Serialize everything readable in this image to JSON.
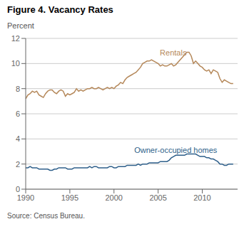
{
  "chart_data": {
    "type": "line",
    "title": "Figure 4. Vacancy Rates",
    "y_label": "Percent",
    "source": "Source: Census Bureau.",
    "x": [
      1990.0,
      1990.25,
      1990.5,
      1990.75,
      1991.0,
      1991.25,
      1991.5,
      1991.75,
      1992.0,
      1992.25,
      1992.5,
      1992.75,
      1993.0,
      1993.25,
      1993.5,
      1993.75,
      1994.0,
      1994.25,
      1994.5,
      1994.75,
      1995.0,
      1995.25,
      1995.5,
      1995.75,
      1996.0,
      1996.25,
      1996.5,
      1996.75,
      1997.0,
      1997.25,
      1997.5,
      1997.75,
      1998.0,
      1998.25,
      1998.5,
      1998.75,
      1999.0,
      1999.25,
      1999.5,
      1999.75,
      2000.0,
      2000.25,
      2000.5,
      2000.75,
      2001.0,
      2001.25,
      2001.5,
      2001.75,
      2002.0,
      2002.25,
      2002.5,
      2002.75,
      2003.0,
      2003.25,
      2003.5,
      2003.75,
      2004.0,
      2004.25,
      2004.5,
      2004.75,
      2005.0,
      2005.25,
      2005.5,
      2005.75,
      2006.0,
      2006.25,
      2006.5,
      2006.75,
      2007.0,
      2007.25,
      2007.5,
      2007.75,
      2008.0,
      2008.25,
      2008.5,
      2008.75,
      2009.0,
      2009.25,
      2009.5,
      2009.75,
      2010.0,
      2010.25,
      2010.5,
      2010.75,
      2011.0,
      2011.25,
      2011.5,
      2011.75,
      2012.0,
      2012.25,
      2012.5,
      2012.75,
      2013.0,
      2013.25,
      2013.5
    ],
    "series": [
      {
        "name": "Rentals",
        "color": "#b5885a",
        "values": [
          7.2,
          7.5,
          7.6,
          7.8,
          7.7,
          7.8,
          7.5,
          7.4,
          7.3,
          7.6,
          7.8,
          7.9,
          7.9,
          7.7,
          7.6,
          7.8,
          7.9,
          7.8,
          7.4,
          7.6,
          7.5,
          7.6,
          7.7,
          8.0,
          7.8,
          7.9,
          7.8,
          7.9,
          8.0,
          8.0,
          8.1,
          8.0,
          8.0,
          8.1,
          8.0,
          7.9,
          8.0,
          8.1,
          8.0,
          8.1,
          8.0,
          8.2,
          8.3,
          8.5,
          8.4,
          8.7,
          8.9,
          9.0,
          9.1,
          9.2,
          9.3,
          9.5,
          9.7,
          10.0,
          10.1,
          10.2,
          10.2,
          10.3,
          10.2,
          10.1,
          10.0,
          9.8,
          9.9,
          9.8,
          9.8,
          9.9,
          10.0,
          9.8,
          9.9,
          10.1,
          10.3,
          10.5,
          10.7,
          10.9,
          10.9,
          10.6,
          10.0,
          10.2,
          10.0,
          9.8,
          9.7,
          9.5,
          9.4,
          9.5,
          9.2,
          9.5,
          9.4,
          9.3,
          8.8,
          8.5,
          8.7,
          8.6,
          8.5,
          8.4,
          8.4
        ]
      },
      {
        "name": "Owner-occupied homes",
        "color": "#2e5f8a",
        "values": [
          1.7,
          1.7,
          1.8,
          1.7,
          1.7,
          1.7,
          1.6,
          1.6,
          1.6,
          1.6,
          1.6,
          1.5,
          1.5,
          1.6,
          1.6,
          1.7,
          1.7,
          1.7,
          1.7,
          1.6,
          1.6,
          1.6,
          1.7,
          1.7,
          1.7,
          1.7,
          1.7,
          1.7,
          1.7,
          1.8,
          1.7,
          1.8,
          1.8,
          1.7,
          1.7,
          1.7,
          1.7,
          1.7,
          1.8,
          1.8,
          1.7,
          1.7,
          1.8,
          1.8,
          1.8,
          1.8,
          1.9,
          1.9,
          1.9,
          1.9,
          1.9,
          2.0,
          1.9,
          2.0,
          2.0,
          2.0,
          2.1,
          2.1,
          2.1,
          2.1,
          2.1,
          2.2,
          2.2,
          2.2,
          2.2,
          2.3,
          2.5,
          2.6,
          2.7,
          2.7,
          2.7,
          2.7,
          2.7,
          2.8,
          2.8,
          2.8,
          2.8,
          2.8,
          2.7,
          2.6,
          2.6,
          2.6,
          2.5,
          2.5,
          2.4,
          2.4,
          2.3,
          2.2,
          2.0,
          2.0,
          1.9,
          1.9,
          2.0,
          2.0,
          2.0
        ]
      }
    ],
    "xlim": [
      1990,
      2014
    ],
    "xticks": [
      1990,
      1995,
      2000,
      2005,
      2010
    ],
    "ylim": [
      0,
      12
    ],
    "yticks": [
      0,
      2,
      4,
      6,
      8,
      10,
      12
    ],
    "grid": true,
    "annotations": [
      {
        "text": "Rentals",
        "x": 2005.2,
        "y": 10.55,
        "color": "#b5885a"
      },
      {
        "text": "Owner-occupied homes",
        "x": 2002.3,
        "y": 2.75,
        "color": "#2e5f8a"
      }
    ]
  }
}
